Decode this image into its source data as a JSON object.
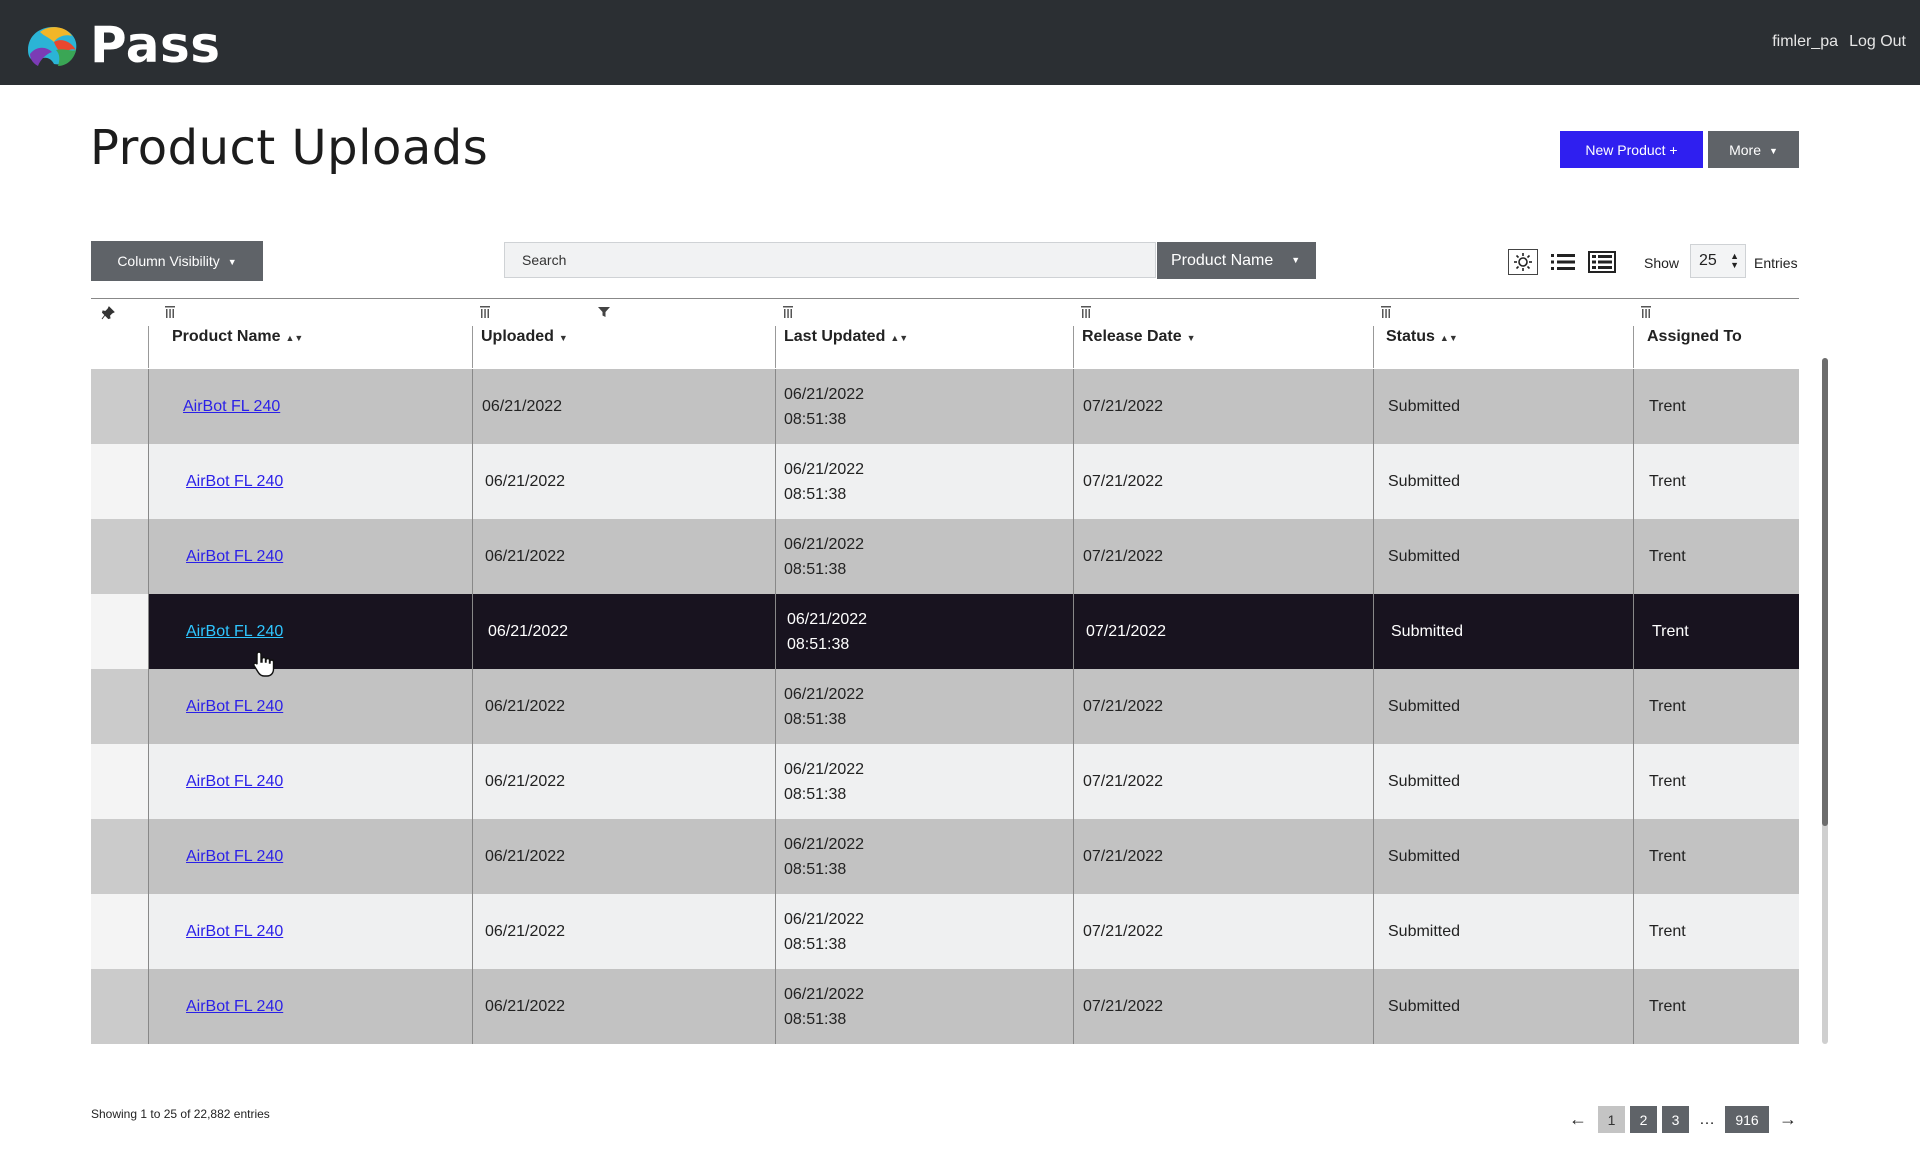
{
  "header": {
    "brand": "Pass",
    "username": "fimler_pa",
    "logout_label": "Log Out"
  },
  "page": {
    "title": "Product Uploads",
    "new_product_label": "New Product +",
    "more_label": "More"
  },
  "toolbar": {
    "column_visibility_label": "Column Visibility",
    "search_placeholder": "Search",
    "search_field_label": "Product Name",
    "show_label": "Show",
    "show_value": "25",
    "entries_label": "Entries"
  },
  "table": {
    "columns": [
      "Product Name",
      "Uploaded",
      "Last Updated",
      "Release Date",
      "Status",
      "Assigned To"
    ],
    "rows": [
      {
        "product": "AirBot FL 240",
        "uploaded": "06/21/2022",
        "updated_date": "06/21/2022",
        "updated_time": "08:51:38",
        "release": "07/21/2022",
        "status": "Submitted",
        "assigned": "Trent"
      },
      {
        "product": "AirBot FL 240",
        "uploaded": "06/21/2022",
        "updated_date": "06/21/2022",
        "updated_time": "08:51:38",
        "release": "07/21/2022",
        "status": "Submitted",
        "assigned": "Trent"
      },
      {
        "product": "AirBot FL 240",
        "uploaded": "06/21/2022",
        "updated_date": "06/21/2022",
        "updated_time": "08:51:38",
        "release": "07/21/2022",
        "status": "Submitted",
        "assigned": "Trent"
      },
      {
        "product": "AirBot FL 240",
        "uploaded": "06/21/2022",
        "updated_date": "06/21/2022",
        "updated_time": "08:51:38",
        "release": "07/21/2022",
        "status": "Submitted",
        "assigned": "Trent"
      },
      {
        "product": "AirBot FL 240",
        "uploaded": "06/21/2022",
        "updated_date": "06/21/2022",
        "updated_time": "08:51:38",
        "release": "07/21/2022",
        "status": "Submitted",
        "assigned": "Trent"
      },
      {
        "product": "AirBot FL 240",
        "uploaded": "06/21/2022",
        "updated_date": "06/21/2022",
        "updated_time": "08:51:38",
        "release": "07/21/2022",
        "status": "Submitted",
        "assigned": "Trent"
      },
      {
        "product": "AirBot FL 240",
        "uploaded": "06/21/2022",
        "updated_date": "06/21/2022",
        "updated_time": "08:51:38",
        "release": "07/21/2022",
        "status": "Submitted",
        "assigned": "Trent"
      },
      {
        "product": "AirBot FL 240",
        "uploaded": "06/21/2022",
        "updated_date": "06/21/2022",
        "updated_time": "08:51:38",
        "release": "07/21/2022",
        "status": "Submitted",
        "assigned": "Trent"
      },
      {
        "product": "AirBot FL 240",
        "uploaded": "06/21/2022",
        "updated_date": "06/21/2022",
        "updated_time": "08:51:38",
        "release": "07/21/2022",
        "status": "Submitted",
        "assigned": "Trent"
      }
    ]
  },
  "footer": {
    "info": "Showing 1 to 25 of 22,882 entries",
    "prev": "←",
    "pages": [
      "1",
      "2",
      "3"
    ],
    "ellipsis": "…",
    "last_page": "916",
    "next": "→"
  },
  "colors": {
    "primary": "#2f1ff0",
    "header_bg": "#2b2f33",
    "button_gray": "#5f6368",
    "link": "#2a1fe8",
    "highlight_row": "#18131f",
    "highlight_link": "#2fc6ff"
  }
}
